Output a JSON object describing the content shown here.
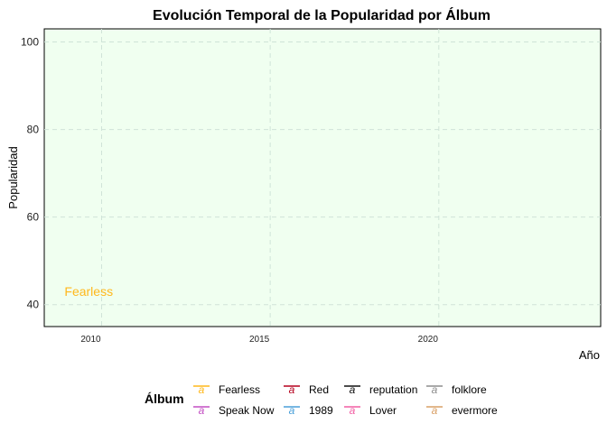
{
  "chart_data": {
    "type": "line",
    "title": "Evolución Temporal de la Popularidad por Álbum",
    "xlabel": "Año",
    "ylabel": "Popularidad",
    "xlim": [
      2008.3,
      2024.8
    ],
    "ylim": [
      35,
      103
    ],
    "x_ticks": [
      2010,
      2015,
      2020
    ],
    "y_ticks": [
      40,
      60,
      80,
      100
    ],
    "grid": true,
    "panel_background": "#f0fff0",
    "legend": {
      "title": "Álbum",
      "placement": "bottom",
      "glyph": "a"
    },
    "series": [
      {
        "name": "Fearless",
        "color": "#FFB81C",
        "values": []
      },
      {
        "name": "Speak Now",
        "color": "#C34FC3",
        "values": []
      },
      {
        "name": "Red",
        "color": "#B5001E",
        "values": []
      },
      {
        "name": "1989",
        "color": "#4A9FD8",
        "values": []
      },
      {
        "name": "reputation",
        "color": "#111111",
        "values": []
      },
      {
        "name": "Lover",
        "color": "#F25FA4",
        "values": []
      },
      {
        "name": "folklore",
        "color": "#8E8E8E",
        "values": []
      },
      {
        "name": "evermore",
        "color": "#D9A067",
        "values": []
      }
    ],
    "annotations": [
      {
        "text": "Fearless",
        "x": 2008.9,
        "y": 43,
        "color": "#FFB81C"
      }
    ]
  }
}
